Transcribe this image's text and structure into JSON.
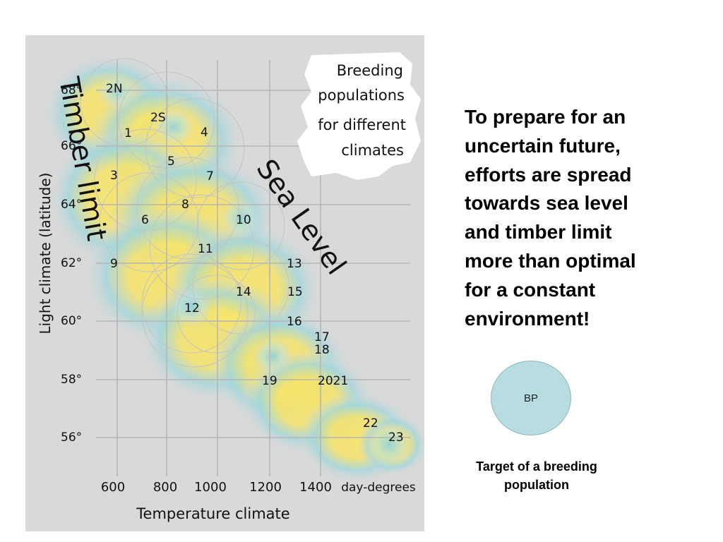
{
  "figure": {
    "title_lines": [
      "Breeding",
      "populations",
      "for different",
      "climates"
    ],
    "y_axis_label": "Light climate (latitude)",
    "x_axis_label": "Temperature climate",
    "x_ticks": [
      "600",
      "800",
      "1000",
      "1200",
      "1400"
    ],
    "x_unit": "day-degrees",
    "y_ticks": [
      "68°",
      "66°",
      "64°",
      "62°",
      "60°",
      "58°",
      "56°"
    ],
    "population_labels": [
      "2N",
      "2S",
      "1",
      "4",
      "5",
      "3",
      "7",
      "8",
      "6",
      "10",
      "11",
      "9",
      "13",
      "14",
      "15",
      "12",
      "16",
      "17",
      "18",
      "19",
      "2021",
      "22",
      "23"
    ],
    "overlay_timber": "Timber limit",
    "overlay_sea": "Sea Level",
    "colors": {
      "background": "#d9d9d9",
      "core": "#f7e46a",
      "halo": "#8fd0dc",
      "grid": "#b5b5b5"
    }
  },
  "bullet": {
    "lines": [
      "To prepare for an",
      "uncertain future,",
      "efforts are spread",
      "towards sea level",
      "and timber limit",
      "more than optimal",
      "for a constant",
      "environment!"
    ]
  },
  "legend": {
    "circle_label": "BP",
    "caption_lines": [
      "Target of a breeding",
      "population"
    ],
    "circle_color": "#b7dde0"
  }
}
